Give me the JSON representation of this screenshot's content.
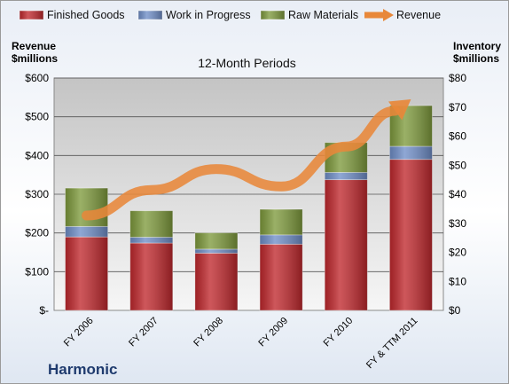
{
  "chart_data": {
    "type": "bar",
    "subtitle": "12-Month Periods",
    "company": "Harmonic",
    "categories": [
      "FY 2006",
      "FY 2007",
      "FY 2008",
      "FY 2009",
      "FY 2010",
      "FY & TTM 2011"
    ],
    "left_axis": {
      "title_line1": "Revenue",
      "title_line2": "$millions",
      "ylim": [
        0,
        600
      ],
      "ticks": [
        0,
        100,
        200,
        300,
        400,
        500,
        600
      ],
      "tick_labels": [
        "$-",
        "$100",
        "$200",
        "$300",
        "$400",
        "$500",
        "$600"
      ]
    },
    "right_axis": {
      "title_line1": "Inventory",
      "title_line2": "$millions",
      "ylim": [
        0,
        80
      ],
      "ticks": [
        0,
        10,
        20,
        30,
        40,
        50,
        60,
        70,
        80
      ],
      "tick_labels": [
        "$0",
        "$10",
        "$20",
        "$30",
        "$40",
        "$50",
        "$60",
        "$70",
        "$80"
      ]
    },
    "series": [
      {
        "name": "Finished Goods",
        "kind": "bar",
        "axis": "right",
        "color": "#c0282d",
        "values": [
          25.3,
          23.2,
          19.7,
          22.8,
          45.0,
          52.0
        ]
      },
      {
        "name": "Work in Progress",
        "kind": "bar",
        "axis": "right",
        "color": "#6f8ec8",
        "values": [
          3.6,
          2.0,
          1.4,
          3.2,
          2.5,
          4.5
        ]
      },
      {
        "name": "Raw Materials",
        "kind": "bar",
        "axis": "right",
        "color": "#7e9a3c",
        "values": [
          13.2,
          9.1,
          5.6,
          8.8,
          10.3,
          14.0
        ]
      },
      {
        "name": "Revenue",
        "kind": "line",
        "axis": "left",
        "color": "#e8883a",
        "values": [
          245,
          311,
          365,
          320,
          423,
          545
        ]
      }
    ],
    "grid": true,
    "legend_position": "top"
  }
}
